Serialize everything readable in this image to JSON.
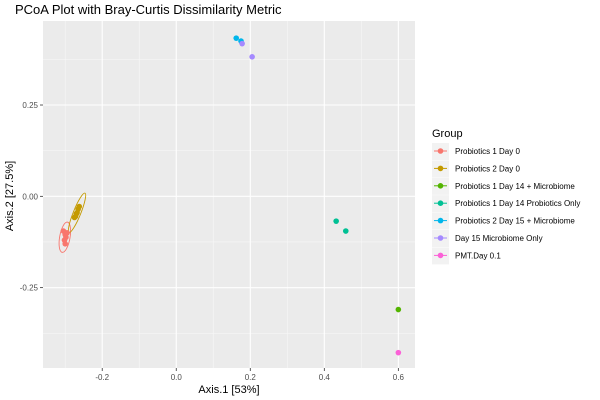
{
  "chart_data": {
    "type": "scatter",
    "title": "PCoA Plot with Bray-Curtis Dissimilarity Metric",
    "xlabel": "Axis.1   [53%]",
    "ylabel": "Axis.2   [27.5%]",
    "xlim": [
      -0.36,
      0.645
    ],
    "ylim": [
      -0.47,
      0.48
    ],
    "x_ticks": [
      {
        "value": -0.2,
        "label": "-0.2"
      },
      {
        "value": 0.0,
        "label": "0.0"
      },
      {
        "value": 0.2,
        "label": "0.2"
      },
      {
        "value": 0.4,
        "label": "0.4"
      },
      {
        "value": 0.6,
        "label": "0.6"
      }
    ],
    "y_ticks": [
      {
        "value": 0.25,
        "label": "0.25"
      },
      {
        "value": 0.0,
        "label": "0.00"
      },
      {
        "value": -0.25,
        "label": "-0.25"
      }
    ],
    "grid": true,
    "legend": {
      "title": "Group",
      "placement": "right"
    },
    "series": [
      {
        "name": "Probiotics 1 Day 0",
        "color": "#F8766D",
        "points": [
          [
            -0.305,
            -0.095
          ],
          [
            -0.3,
            -0.105
          ],
          [
            -0.298,
            -0.112
          ],
          [
            -0.302,
            -0.12
          ],
          [
            -0.295,
            -0.1
          ],
          [
            -0.3,
            -0.13
          ]
        ],
        "ellipse": {
          "cx": -0.301,
          "cy": -0.112,
          "rx": 0.014,
          "ry": 0.042,
          "angle": 10
        }
      },
      {
        "name": "Probiotics 2 Day 0",
        "color": "#C49A00",
        "points": [
          [
            -0.272,
            -0.055
          ],
          [
            -0.27,
            -0.048
          ],
          [
            -0.268,
            -0.045
          ],
          [
            -0.265,
            -0.035
          ],
          [
            -0.262,
            -0.028
          ],
          [
            -0.275,
            -0.058
          ]
        ],
        "ellipse": {
          "cx": -0.268,
          "cy": -0.045,
          "rx": 0.01,
          "ry": 0.058,
          "angle": 22
        }
      },
      {
        "name": "Probiotics 1 Day 14 + Microbiome",
        "color": "#53B400",
        "points": [
          [
            0.6,
            -0.31
          ]
        ]
      },
      {
        "name": "Probiotics 1 Day 14 Probiotics Only",
        "color": "#00C094",
        "points": [
          [
            0.432,
            -0.068
          ],
          [
            0.458,
            -0.095
          ]
        ]
      },
      {
        "name": "Probiotics 2 Day 15 + Microbiome",
        "color": "#00B6EB",
        "points": [
          [
            0.162,
            0.433
          ],
          [
            0.175,
            0.425
          ]
        ]
      },
      {
        "name": "Day 15 Microbiome Only",
        "color": "#A58AFF",
        "points": [
          [
            0.178,
            0.418
          ],
          [
            0.205,
            0.382
          ]
        ]
      },
      {
        "name": "PMT.Day 0.1",
        "color": "#FB61D7",
        "points": [
          [
            0.6,
            -0.428
          ]
        ]
      }
    ]
  }
}
